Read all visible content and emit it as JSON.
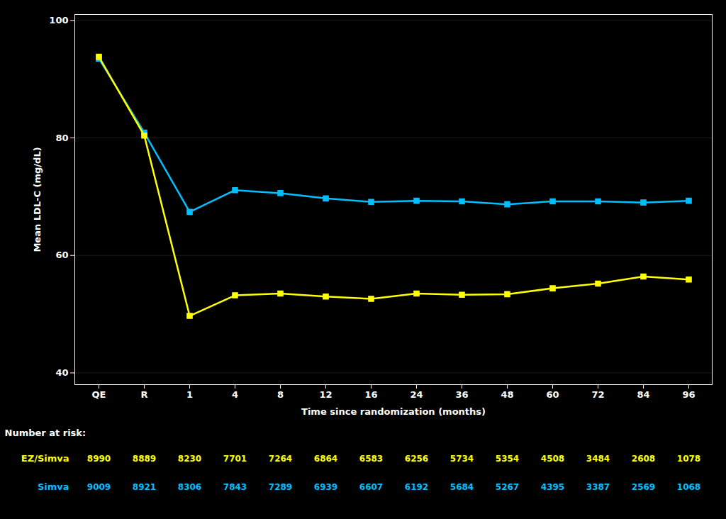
{
  "chart_data": {
    "type": "line",
    "xlabel": "Time since randomization (months)",
    "ylabel": "Mean LDL-C (mg/dL)",
    "categories": [
      "QE",
      "R",
      "1",
      "4",
      "8",
      "12",
      "16",
      "24",
      "36",
      "48",
      "60",
      "72",
      "84",
      "96"
    ],
    "series": [
      {
        "name": "Simva",
        "color": "#00BFFF",
        "marker": "square",
        "values": [
          93.5,
          80.9,
          67.4,
          71.1,
          70.6,
          69.7,
          69.1,
          69.3,
          69.2,
          68.7,
          69.2,
          69.2,
          69.0,
          69.3
        ],
        "at_risk": [
          9009,
          8921,
          8306,
          7843,
          7289,
          6939,
          6607,
          6192,
          5684,
          5267,
          4395,
          3387,
          2569,
          1068
        ]
      },
      {
        "name": "EZ/Simva",
        "color": "#FFFF00",
        "marker": "square",
        "values": [
          93.8,
          80.4,
          49.7,
          53.2,
          53.5,
          53.0,
          52.6,
          53.5,
          53.3,
          53.4,
          54.4,
          55.2,
          56.4,
          55.9
        ],
        "at_risk": [
          8990,
          8889,
          8230,
          7701,
          7264,
          6864,
          6583,
          6256,
          5734,
          5354,
          4508,
          3484,
          2608,
          1078
        ]
      }
    ],
    "at_risk_label": "Number at risk:",
    "ylim": [
      38,
      101
    ],
    "yticks": [
      40,
      60,
      80,
      100
    ],
    "grid": true
  }
}
